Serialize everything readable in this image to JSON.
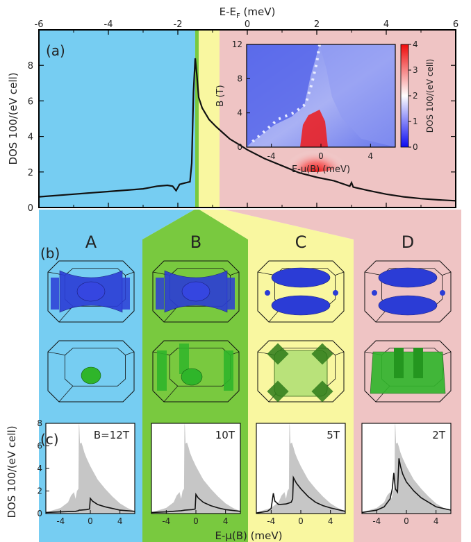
{
  "figure": {
    "panel_labels": {
      "a": "(a)",
      "b": "(b)",
      "c": "(c)"
    },
    "column_labels": [
      "A",
      "B",
      "C",
      "D"
    ],
    "colors": {
      "region_A": "#76cdf2",
      "region_B": "#79c93f",
      "region_C": "#f9f7a0",
      "region_D": "#efc4c4",
      "fermi_surface_blue": "#2b3cd6",
      "fermi_surface_green": "#2fb52a",
      "dos_fill_gray": "#c6c6c6"
    }
  },
  "chart_data": [
    {
      "id": "main-dos",
      "type": "line",
      "xlabel_top": "E-E",
      "xlabel_top_sub": "F",
      "xlabel_top_unit": " (meV)",
      "ylabel": "DOS  100/(eV cell)",
      "xlim": [
        -6,
        6
      ],
      "ylim": [
        0,
        10
      ],
      "xticks": [
        -6,
        -4,
        -2,
        0,
        2,
        4,
        6
      ],
      "yticks": [
        0,
        2,
        4,
        6,
        8
      ],
      "shaded_regions": [
        {
          "label": "A",
          "from": -6,
          "to": -1.5
        },
        {
          "label": "B",
          "from": -1.5,
          "to": -1.4
        },
        {
          "label": "C",
          "from": -1.4,
          "to": -0.8
        },
        {
          "label": "D",
          "from": -0.8,
          "to": 6
        }
      ],
      "series": [
        {
          "x": [
            -6,
            -5,
            -4,
            -3,
            -2.6,
            -2.3,
            -2.15,
            -2.05,
            -1.95,
            -1.8,
            -1.65,
            -1.6,
            -1.55,
            -1.5,
            -1.45,
            -1.4,
            -1.3,
            -1.1,
            -0.9,
            -0.7,
            -0.5,
            -0.2,
            0,
            0.5,
            1,
            1.5,
            2,
            2.5,
            2.95,
            3.0,
            3.05,
            3.5,
            4,
            4.5,
            5,
            5.5,
            6
          ],
          "y": [
            0.6,
            0.75,
            0.9,
            1.05,
            1.2,
            1.25,
            1.2,
            0.95,
            1.3,
            1.38,
            1.45,
            2.5,
            6.5,
            8.4,
            7.4,
            6.2,
            5.6,
            4.95,
            4.55,
            4.2,
            3.85,
            3.5,
            3.25,
            2.75,
            2.35,
            1.95,
            1.7,
            1.5,
            1.2,
            1.4,
            1.15,
            0.95,
            0.75,
            0.6,
            0.5,
            0.43,
            0.38
          ]
        }
      ]
    },
    {
      "id": "inset-heatmap",
      "type": "heatmap",
      "xlabel": "E-μ(B) (meV)",
      "ylabel": "B (T)",
      "colorbar_label": "DOS  100/(eV cell)",
      "xlim": [
        -6,
        6
      ],
      "ylim": [
        0,
        12
      ],
      "xticks": [
        -4,
        0,
        4
      ],
      "yticks": [
        0,
        4,
        8,
        12
      ],
      "colorbar_ticks": [
        0,
        1,
        2,
        3,
        4
      ],
      "colorbar_range": [
        0,
        4
      ]
    },
    {
      "id": "field-dos",
      "type": "area",
      "ylabel": "DOS  100/(eV cell)",
      "xlabel": "E-μ(B) (meV)",
      "xlim": [
        -6,
        6
      ],
      "ylim": [
        0,
        8
      ],
      "xticks": [
        -4,
        0,
        4
      ],
      "yticks": [
        0,
        2,
        4,
        6,
        8
      ],
      "panels": [
        {
          "field_label": "B=12T",
          "x": [
            -6,
            -4,
            -2,
            -1.6,
            -1.5,
            -1.3,
            -0.5,
            -0.1,
            0,
            0.3,
            1,
            2,
            3,
            4,
            6
          ],
          "y": [
            0.1,
            0.15,
            0.2,
            0.25,
            0.3,
            0.3,
            0.35,
            0.4,
            1.35,
            1.1,
            0.8,
            0.6,
            0.45,
            0.3,
            0.2
          ]
        },
        {
          "field_label": "10T",
          "x": [
            -6,
            -4,
            -2,
            -1.5,
            -0.5,
            -0.1,
            0,
            0.3,
            1,
            2,
            3,
            4,
            6
          ],
          "y": [
            0.1,
            0.15,
            0.25,
            0.3,
            0.35,
            0.4,
            1.7,
            1.4,
            1.0,
            0.7,
            0.5,
            0.35,
            0.2
          ]
        },
        {
          "field_label": "5T",
          "x": [
            -6,
            -4.5,
            -4,
            -3.7,
            -3.5,
            -3,
            -2,
            -1.3,
            -1.1,
            -1.0,
            -0.6,
            0,
            1,
            2,
            3,
            4,
            6
          ],
          "y": [
            0.05,
            0.2,
            0.45,
            1.8,
            1.1,
            0.8,
            0.85,
            1.0,
            1.3,
            3.2,
            2.7,
            2.2,
            1.5,
            1.0,
            0.7,
            0.5,
            0.2
          ]
        },
        {
          "field_label": "2T",
          "x": [
            -6,
            -4,
            -3,
            -2.2,
            -1.9,
            -1.7,
            -1.5,
            -1.2,
            -1.0,
            -0.8,
            -0.5,
            0,
            1,
            2,
            3,
            4,
            6
          ],
          "y": [
            0.1,
            0.3,
            0.6,
            1.3,
            2.2,
            3.6,
            2.2,
            1.9,
            4.9,
            4.2,
            3.5,
            2.8,
            2.0,
            1.4,
            1.0,
            0.6,
            0.3
          ]
        }
      ],
      "background_area": {
        "x": [
          -6,
          -4,
          -3,
          -2.6,
          -2.2,
          -2.0,
          -1.8,
          -1.6,
          -1.55,
          -1.5,
          -1.45,
          -1.4,
          -1.2,
          -1.0,
          -0.8,
          -0.5,
          0,
          0.5,
          1,
          2,
          3,
          4,
          5,
          6
        ],
        "y": [
          0.1,
          0.5,
          1.0,
          1.6,
          1.9,
          1.3,
          2.0,
          2.2,
          7.8,
          8.0,
          7.2,
          6.2,
          6.3,
          5.9,
          5.4,
          4.9,
          4.2,
          3.6,
          3.0,
          2.2,
          1.5,
          0.9,
          0.5,
          0.2
        ]
      }
    }
  ]
}
